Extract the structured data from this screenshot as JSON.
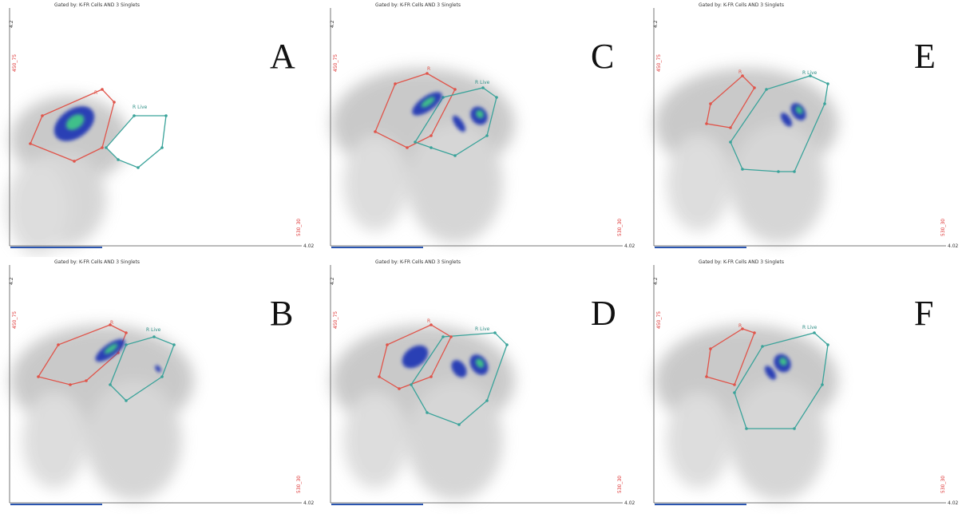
{
  "panels": [
    {
      "letter": "A",
      "header": "Gated by: K-FR Cells AND 3 Singlets",
      "gates": [
        "R",
        "R Live"
      ],
      "y_axis": "450_75",
      "x_axis": "530_30",
      "y_max": "4.2",
      "x_max": "4.02"
    },
    {
      "letter": "B",
      "header": "Gated by: K-FR Cells AND 3 Singlets",
      "gates": [
        "R",
        "R Live"
      ],
      "y_axis": "450_75",
      "x_axis": "530_30",
      "y_max": "4.2",
      "x_max": "4.02"
    },
    {
      "letter": "C",
      "header": "Gated by: K-FR Cells AND 3 Singlets",
      "gates": [
        "R",
        "R Live"
      ],
      "y_axis": "450_75",
      "x_axis": "530_30",
      "y_max": "4.2",
      "x_max": "4.02"
    },
    {
      "letter": "D",
      "header": "Gated by: K-FR Cells AND 3 Singlets",
      "gates": [
        "R",
        "R Live"
      ],
      "y_axis": "450_75",
      "x_axis": "530_30",
      "y_max": "4.2",
      "x_max": "4.02"
    },
    {
      "letter": "E",
      "header": "Gated by: K-FR Cells AND 3 Singlets",
      "gates": [
        "R",
        "R Live"
      ],
      "y_axis": "450_75",
      "x_axis": "530_30",
      "y_max": "4.2",
      "x_max": "4.02"
    },
    {
      "letter": "F",
      "header": "Gated by: K-FR Cells AND 3 Singlets",
      "gates": [
        "R",
        "R Live"
      ],
      "y_axis": "450_75",
      "x_axis": "530_30",
      "y_max": "4.2",
      "x_max": "4.02"
    }
  ]
}
